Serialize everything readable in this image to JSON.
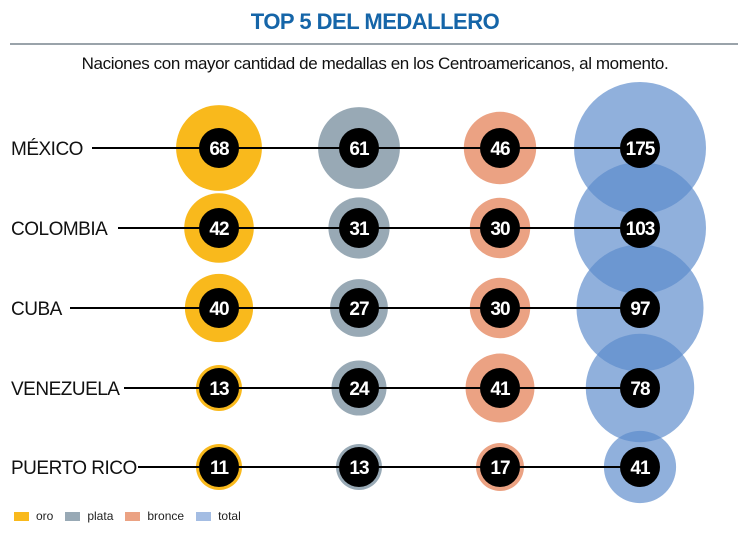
{
  "header": {
    "title": "TOP 5 DEL MEDALLERO",
    "subtitle": "Naciones con mayor cantidad de medallas en los Centroamericanos, al momento."
  },
  "chart_data": {
    "type": "bubble-table",
    "title": "TOP 5 DEL MEDALLERO",
    "subtitle": "Naciones con mayor cantidad de medallas en los Centroamericanos, al momento.",
    "categories": [
      "MÉXICO",
      "COLOMBIA",
      "CUBA",
      "VENEZUELA",
      "PUERTO RICO"
    ],
    "series": [
      {
        "name": "oro",
        "color": "#f9b91c",
        "values": [
          68,
          42,
          40,
          13,
          11
        ]
      },
      {
        "name": "plata",
        "color": "#98a9b5",
        "values": [
          61,
          31,
          27,
          24,
          13
        ]
      },
      {
        "name": "bronce",
        "color": "#eba283",
        "values": [
          46,
          30,
          30,
          41,
          17
        ]
      },
      {
        "name": "total",
        "color": "#5b8acb",
        "values": [
          175,
          103,
          97,
          78,
          41
        ]
      }
    ],
    "legend_position": "bottom-left"
  },
  "legend": [
    {
      "label": "oro",
      "color": "#f9b91c"
    },
    {
      "label": "plata",
      "color": "#98a9b5"
    },
    {
      "label": "bronce",
      "color": "#eba283"
    },
    {
      "label": "total",
      "color": "#a4bde3"
    }
  ]
}
